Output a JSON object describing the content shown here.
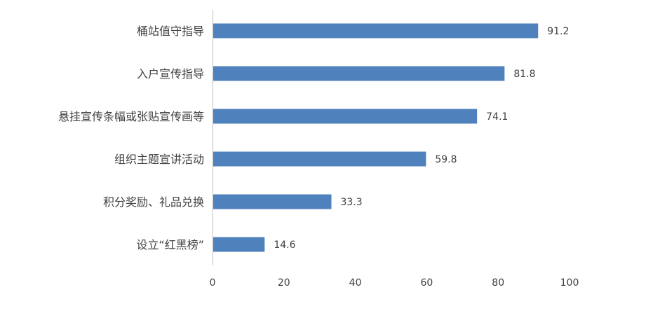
{
  "chart_data": {
    "type": "bar",
    "orientation": "horizontal",
    "title": "",
    "xlabel": "",
    "ylabel": "",
    "categories": [
      "桶站值守指导",
      "入户宣传指导",
      "悬挂宣传条幅或张贴宣传画等",
      "组织主题宣讲活动",
      "积分奖励、礼品兑换",
      "设立“红黑榜”"
    ],
    "values": [
      91.2,
      81.8,
      74.1,
      59.8,
      33.3,
      14.6
    ],
    "data_labels": [
      "91.2",
      "81.8",
      "74.1",
      "59.8",
      "33.3",
      "14.6"
    ],
    "xlim": [
      0,
      100
    ],
    "xticks": [
      0,
      20,
      40,
      60,
      80,
      100
    ],
    "xtick_labels": [
      "0",
      "20",
      "40",
      "60",
      "80",
      "100"
    ],
    "grid": false,
    "legend": "none",
    "bar_color": "#4f81bd",
    "axis_color": "#bfbfbf",
    "text_color": "#404040"
  }
}
